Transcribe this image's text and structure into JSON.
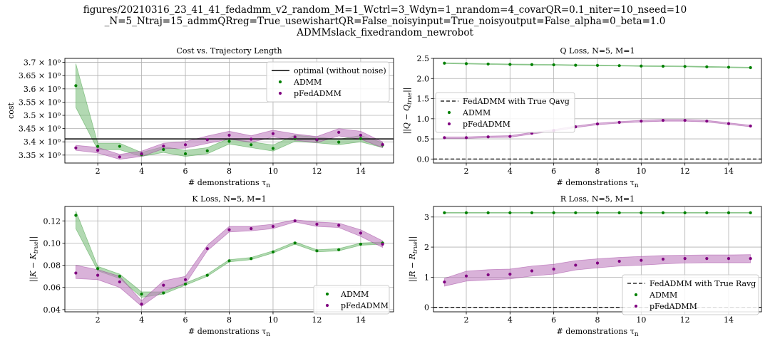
{
  "suptitle": {
    "line1": "figures/20210316_23_41_41_fedadmm_v2_random_M=1_Wctrl=3_Wdyn=1_nrandom=4_covarQR=0.1_niter=10_nseed=10",
    "line2": "_N=5_Ntraj=15_admmQRreg=True_usewishartQR=False_noisyinput=True_noisyoutput=False_alpha=0_beta=1.0",
    "line3": "ADMMslack_fixedrandom_newrobot"
  },
  "colors": {
    "admm": "#008000",
    "pfed": "#800080",
    "admm_band": "#7fbf7f",
    "pfed_band": "#bf7fbf",
    "line": "#000000"
  },
  "chart_data": [
    {
      "id": "cost",
      "type": "scatter",
      "title": "Cost vs. Trajectory Length",
      "xlabel": "# demonstrations τn",
      "ylabel": "cost",
      "xlim": [
        0.5,
        15.5
      ],
      "ylim": [
        3.32,
        3.715
      ],
      "xticks": [
        2,
        4,
        6,
        8,
        10,
        12,
        14
      ],
      "yticks": [
        3.35,
        3.4,
        3.45,
        3.5,
        3.55,
        3.6,
        3.65,
        3.7
      ],
      "ytick_labels": [
        "3.35 × 10⁰",
        "3.4 × 10⁰",
        "3.45 × 10⁰",
        "3.5 × 10⁰",
        "3.55 × 10⁰",
        "3.6 × 10⁰",
        "3.65 × 10⁰",
        "3.7 × 10⁰"
      ],
      "legend": {
        "loc": "upper right",
        "labels": [
          "optimal (without noise)",
          "ADMM",
          "pFedADMM"
        ]
      },
      "hline": {
        "y": 3.411,
        "label": "optimal (without noise)",
        "style": "solid"
      },
      "x": [
        1,
        2,
        3,
        4,
        5,
        6,
        7,
        8,
        9,
        10,
        11,
        12,
        13,
        14,
        15
      ],
      "series": [
        {
          "name": "ADMM",
          "color": "admm",
          "values": [
            3.612,
            3.383,
            3.383,
            3.352,
            3.371,
            3.355,
            3.366,
            3.402,
            3.389,
            3.375,
            3.412,
            3.407,
            3.399,
            3.412,
            3.388
          ],
          "lower": [
            3.53,
            3.37,
            3.37,
            3.345,
            3.36,
            3.345,
            3.355,
            3.392,
            3.378,
            3.365,
            3.402,
            3.396,
            3.389,
            3.4,
            3.378
          ],
          "upper": [
            3.695,
            3.395,
            3.395,
            3.36,
            3.382,
            3.368,
            3.378,
            3.413,
            3.4,
            3.388,
            3.425,
            3.418,
            3.41,
            3.424,
            3.397
          ]
        },
        {
          "name": "pFedADMM",
          "color": "pfed",
          "values": [
            3.377,
            3.368,
            3.343,
            3.355,
            3.384,
            3.389,
            3.408,
            3.425,
            3.41,
            3.431,
            3.418,
            3.408,
            3.436,
            3.425,
            3.39
          ],
          "lower": [
            3.368,
            3.358,
            3.334,
            3.345,
            3.374,
            3.376,
            3.394,
            3.41,
            3.398,
            3.418,
            3.406,
            3.397,
            3.422,
            3.41,
            3.378
          ],
          "upper": [
            3.387,
            3.379,
            3.353,
            3.365,
            3.395,
            3.401,
            3.422,
            3.44,
            3.423,
            3.444,
            3.43,
            3.42,
            3.45,
            3.44,
            3.4
          ]
        }
      ]
    },
    {
      "id": "q",
      "type": "scatter",
      "title": "Q Loss, N=5, M=1",
      "xlabel": "# demonstrations τn",
      "ylabel": "||Q − Qtrue||",
      "xlim": [
        0.5,
        15.5
      ],
      "ylim": [
        -0.1,
        2.5
      ],
      "xticks": [
        2,
        4,
        6,
        8,
        10,
        12,
        14
      ],
      "yticks": [
        0.0,
        0.5,
        1.0,
        1.5,
        2.0,
        2.5
      ],
      "ytick_labels": [
        "0.0",
        "0.5",
        "1.0",
        "1.5",
        "2.0",
        "2.5"
      ],
      "legend": {
        "loc": "center left",
        "labels": [
          "FedADMM with True Qavg",
          "ADMM",
          "pFedADMM"
        ]
      },
      "hline": {
        "y": 0.0,
        "label": "FedADMM with True Qavg",
        "style": "dashed"
      },
      "x": [
        1,
        2,
        3,
        4,
        5,
        6,
        7,
        8,
        9,
        10,
        11,
        12,
        13,
        14,
        15
      ],
      "series": [
        {
          "name": "ADMM",
          "color": "admm",
          "values": [
            2.38,
            2.37,
            2.36,
            2.35,
            2.345,
            2.34,
            2.33,
            2.325,
            2.32,
            2.31,
            2.305,
            2.3,
            2.29,
            2.28,
            2.27
          ],
          "lower": [
            2.37,
            2.36,
            2.35,
            2.34,
            2.335,
            2.33,
            2.32,
            2.315,
            2.31,
            2.3,
            2.295,
            2.29,
            2.28,
            2.27,
            2.26
          ],
          "upper": [
            2.39,
            2.38,
            2.37,
            2.36,
            2.355,
            2.35,
            2.34,
            2.335,
            2.33,
            2.32,
            2.315,
            2.31,
            2.3,
            2.29,
            2.28
          ]
        },
        {
          "name": "pFedADMM",
          "color": "pfed",
          "values": [
            0.53,
            0.53,
            0.55,
            0.56,
            0.64,
            0.71,
            0.8,
            0.87,
            0.91,
            0.94,
            0.96,
            0.96,
            0.94,
            0.88,
            0.82
          ],
          "lower": [
            0.51,
            0.51,
            0.53,
            0.54,
            0.62,
            0.69,
            0.78,
            0.85,
            0.89,
            0.92,
            0.94,
            0.94,
            0.92,
            0.86,
            0.8
          ],
          "upper": [
            0.55,
            0.55,
            0.57,
            0.58,
            0.66,
            0.73,
            0.82,
            0.89,
            0.93,
            0.96,
            0.98,
            0.98,
            0.96,
            0.9,
            0.84
          ]
        }
      ]
    },
    {
      "id": "k",
      "type": "scatter",
      "title": "K Loss, N=5, M=1",
      "xlabel": "# demonstrations τn",
      "ylabel": "||K − Ktrue||",
      "xlim": [
        0.5,
        15.5
      ],
      "ylim": [
        0.038,
        0.133
      ],
      "xticks": [
        2,
        4,
        6,
        8,
        10,
        12,
        14
      ],
      "yticks": [
        0.04,
        0.06,
        0.08,
        0.1,
        0.12
      ],
      "ytick_labels": [
        "0.04",
        "0.06",
        "0.08",
        "0.10",
        "0.12"
      ],
      "legend": {
        "loc": "lower right",
        "labels": [
          "ADMM",
          "pFedADMM"
        ]
      },
      "x": [
        1,
        2,
        3,
        4,
        5,
        6,
        7,
        8,
        9,
        10,
        11,
        12,
        13,
        14,
        15
      ],
      "series": [
        {
          "name": "ADMM",
          "color": "admm",
          "values": [
            0.125,
            0.077,
            0.07,
            0.054,
            0.055,
            0.063,
            0.071,
            0.084,
            0.086,
            0.092,
            0.1,
            0.093,
            0.094,
            0.099,
            0.1
          ],
          "lower": [
            0.113,
            0.075,
            0.068,
            0.051,
            0.054,
            0.062,
            0.07,
            0.083,
            0.085,
            0.091,
            0.099,
            0.092,
            0.093,
            0.098,
            0.099
          ],
          "upper": [
            0.129,
            0.079,
            0.072,
            0.056,
            0.056,
            0.064,
            0.072,
            0.085,
            0.087,
            0.093,
            0.101,
            0.094,
            0.095,
            0.1,
            0.101
          ]
        },
        {
          "name": "pFedADMM",
          "color": "pfed",
          "values": [
            0.073,
            0.071,
            0.065,
            0.045,
            0.062,
            0.067,
            0.095,
            0.112,
            0.113,
            0.115,
            0.12,
            0.117,
            0.116,
            0.109,
            0.099
          ],
          "lower": [
            0.068,
            0.067,
            0.06,
            0.043,
            0.057,
            0.063,
            0.093,
            0.11,
            0.111,
            0.113,
            0.119,
            0.115,
            0.114,
            0.106,
            0.096
          ],
          "upper": [
            0.08,
            0.076,
            0.07,
            0.048,
            0.066,
            0.07,
            0.098,
            0.115,
            0.115,
            0.117,
            0.121,
            0.119,
            0.118,
            0.112,
            0.102
          ]
        }
      ]
    },
    {
      "id": "r",
      "type": "scatter",
      "title": "R Loss, N=5, M=1",
      "xlabel": "# demonstrations τn",
      "ylabel": "||R − Rtrue||",
      "xlim": [
        0.5,
        15.5
      ],
      "ylim": [
        -0.15,
        3.35
      ],
      "xticks": [
        2,
        4,
        6,
        8,
        10,
        12,
        14
      ],
      "yticks": [
        0,
        1,
        2,
        3
      ],
      "ytick_labels": [
        "0",
        "1",
        "2",
        "3"
      ],
      "legend": {
        "loc": "lower right",
        "labels": [
          "FedADMM with True Ravg",
          "ADMM",
          "pFedADMM"
        ]
      },
      "hline": {
        "y": 0.0,
        "label": "FedADMM with True Ravg",
        "style": "dashed"
      },
      "x": [
        1,
        2,
        3,
        4,
        5,
        6,
        7,
        8,
        9,
        10,
        11,
        12,
        13,
        14,
        15
      ],
      "series": [
        {
          "name": "ADMM",
          "color": "admm",
          "values": [
            3.14,
            3.14,
            3.14,
            3.14,
            3.14,
            3.14,
            3.14,
            3.14,
            3.14,
            3.14,
            3.14,
            3.14,
            3.14,
            3.14,
            3.14
          ],
          "lower": [
            3.13,
            3.13,
            3.13,
            3.13,
            3.13,
            3.13,
            3.13,
            3.13,
            3.13,
            3.13,
            3.13,
            3.13,
            3.13,
            3.13,
            3.13
          ],
          "upper": [
            3.15,
            3.15,
            3.15,
            3.15,
            3.15,
            3.15,
            3.15,
            3.15,
            3.15,
            3.15,
            3.15,
            3.15,
            3.15,
            3.15,
            3.15
          ]
        },
        {
          "name": "pFedADMM",
          "color": "pfed",
          "values": [
            0.84,
            1.04,
            1.08,
            1.1,
            1.21,
            1.27,
            1.4,
            1.47,
            1.53,
            1.56,
            1.6,
            1.62,
            1.62,
            1.62,
            1.62
          ],
          "lower": [
            0.7,
            0.87,
            0.91,
            0.94,
            1.04,
            1.1,
            1.24,
            1.31,
            1.37,
            1.4,
            1.44,
            1.47,
            1.48,
            1.48,
            1.48
          ],
          "upper": [
            0.96,
            1.2,
            1.25,
            1.27,
            1.37,
            1.43,
            1.55,
            1.61,
            1.66,
            1.69,
            1.72,
            1.73,
            1.74,
            1.74,
            1.75
          ]
        }
      ]
    }
  ]
}
